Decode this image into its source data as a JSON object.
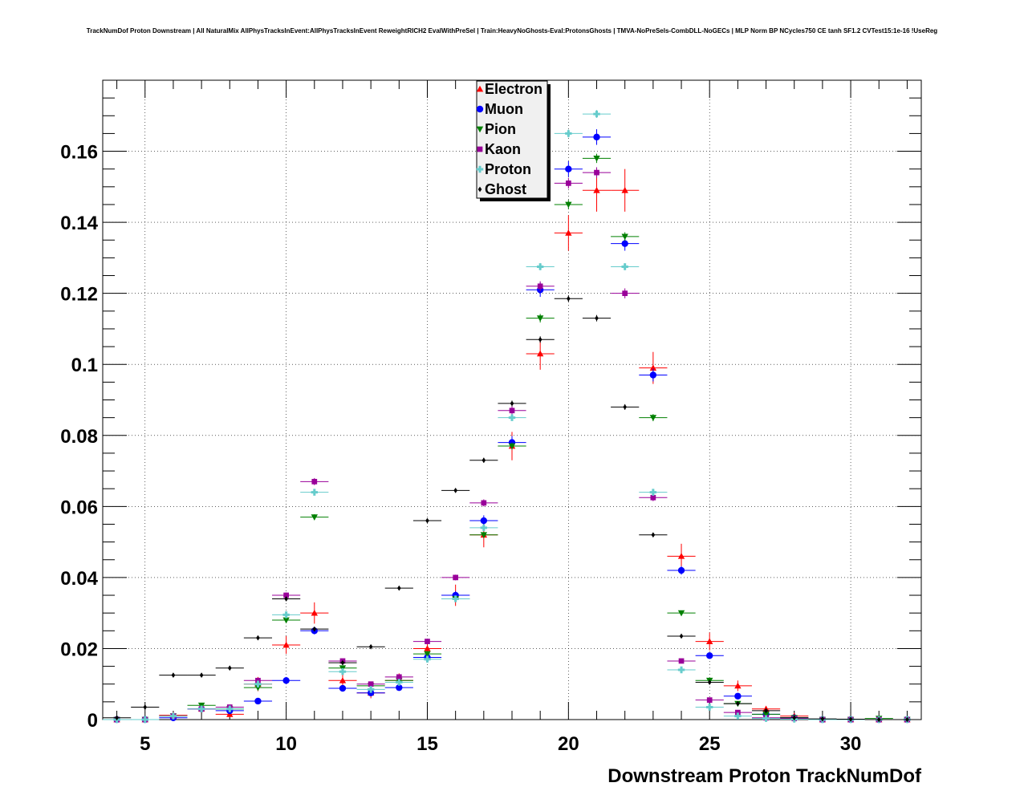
{
  "chart_data": {
    "type": "scatter",
    "title": "TrackNumDof Proton Downstream | All NaturalMix AllPhysTracksInEvent:AllPhysTracksInEvent ReweightRICH2 EvalWithPreSel | Train:HeavyNoGhosts-Eval:ProtonsGhosts | TMVA-NoPreSels-CombDLL-NoGECs | MLP Norm BP NCycles750 CE tanh SF1.2 CVTest15:1e-16 !UseReg",
    "xlabel": "Downstream Proton TrackNumDof",
    "ylabel": "",
    "xlim": [
      3.5,
      32.5
    ],
    "ylim": [
      0,
      0.18
    ],
    "grid": true,
    "legend_position": "top-center",
    "x_ticks": [
      "5",
      "10",
      "15",
      "20",
      "25",
      "30"
    ],
    "y_ticks": [
      "0",
      "0.02",
      "0.04",
      "0.06",
      "0.08",
      "0.1",
      "0.12",
      "0.14",
      "0.16"
    ],
    "x": [
      4,
      5,
      6,
      7,
      8,
      9,
      10,
      11,
      12,
      13,
      14,
      15,
      16,
      17,
      18,
      19,
      20,
      21,
      22,
      23,
      24,
      25,
      26,
      27,
      28,
      29,
      30,
      31,
      32
    ],
    "series": [
      {
        "name": "Electron",
        "color": "#ff0000",
        "marker": "triangle-up",
        "values": [
          0,
          0,
          0.0012,
          0.003,
          0.0015,
          0.01,
          0.021,
          0.03,
          0.011,
          0.0075,
          0.011,
          0.02,
          0.035,
          0.052,
          0.077,
          0.103,
          0.137,
          0.149,
          0.149,
          0.099,
          0.046,
          0.022,
          0.0095,
          0.003,
          0.001,
          0,
          0,
          0,
          0
        ],
        "errors": [
          0,
          0,
          0.0006,
          0.001,
          0.0008,
          0.002,
          0.0025,
          0.003,
          0.002,
          0.0015,
          0.002,
          0.0025,
          0.003,
          0.0035,
          0.004,
          0.0045,
          0.005,
          0.006,
          0.006,
          0.0045,
          0.0035,
          0.0025,
          0.0015,
          0.0008,
          0.0005,
          0,
          0,
          0,
          0
        ]
      },
      {
        "name": "Muon",
        "color": "#0000ff",
        "marker": "circle",
        "values": [
          0,
          0,
          0.0005,
          0.003,
          0.0025,
          0.0052,
          0.011,
          0.025,
          0.0088,
          0.0075,
          0.009,
          0.0175,
          0.035,
          0.056,
          0.078,
          0.121,
          0.155,
          0.164,
          0.134,
          0.097,
          0.042,
          0.018,
          0.0066,
          0.0015,
          0.0005,
          0,
          0,
          0,
          0
        ],
        "errors": [
          0,
          0,
          0.0002,
          0.0005,
          0.0005,
          0.0008,
          0.001,
          0.001,
          0.0008,
          0.0008,
          0.0008,
          0.001,
          0.0012,
          0.0015,
          0.0018,
          0.002,
          0.0022,
          0.0022,
          0.002,
          0.0018,
          0.0012,
          0.0008,
          0.0005,
          0.0003,
          0.0002,
          0,
          0,
          0,
          0
        ]
      },
      {
        "name": "Pion",
        "color": "#008000",
        "marker": "triangle-down",
        "values": [
          0,
          0,
          0.001,
          0.004,
          0.003,
          0.009,
          0.028,
          0.057,
          0.0145,
          0.0095,
          0.011,
          0.0185,
          0.034,
          0.052,
          0.077,
          0.113,
          0.145,
          0.158,
          0.136,
          0.085,
          0.03,
          0.011,
          0.0045,
          0.0015,
          0.0005,
          0,
          0,
          0.0003,
          0
        ],
        "errors": [
          0,
          0,
          0.0002,
          0.0003,
          0.0003,
          0.0004,
          0.0006,
          0.0008,
          0.0004,
          0.0004,
          0.0004,
          0.0005,
          0.0007,
          0.0008,
          0.001,
          0.0012,
          0.0013,
          0.0013,
          0.0012,
          0.001,
          0.0006,
          0.0004,
          0.0002,
          0.0001,
          0.0001,
          0,
          0,
          0.0001,
          0
        ]
      },
      {
        "name": "Kaon",
        "color": "#990099",
        "marker": "square",
        "values": [
          0,
          0,
          0.001,
          0.003,
          0.0035,
          0.011,
          0.035,
          0.067,
          0.0165,
          0.01,
          0.012,
          0.022,
          0.04,
          0.061,
          0.087,
          0.122,
          0.151,
          0.154,
          0.12,
          0.0625,
          0.0165,
          0.0055,
          0.002,
          0.0005,
          0.0003,
          0,
          0,
          0,
          0
        ],
        "errors": [
          0,
          0,
          0.0002,
          0.0003,
          0.0003,
          0.0005,
          0.0008,
          0.001,
          0.0005,
          0.0004,
          0.0004,
          0.0006,
          0.0008,
          0.001,
          0.0012,
          0.0014,
          0.0015,
          0.0015,
          0.0014,
          0.001,
          0.0005,
          0.0003,
          0.0002,
          0.0001,
          0.0001,
          0,
          0,
          0,
          0
        ]
      },
      {
        "name": "Proton",
        "color": "#66cccc",
        "marker": "cross",
        "values": [
          0,
          0,
          0.001,
          0.003,
          0.003,
          0.01,
          0.0295,
          0.064,
          0.0135,
          0.0085,
          0.0105,
          0.017,
          0.034,
          0.054,
          0.085,
          0.1275,
          0.165,
          0.1705,
          0.1275,
          0.064,
          0.014,
          0.0035,
          0.001,
          0.0003,
          0.0001,
          0,
          0,
          0,
          0
        ],
        "errors": [
          0,
          0,
          0.0001,
          0.0002,
          0.0002,
          0.0003,
          0.0005,
          0.0007,
          0.0003,
          0.0003,
          0.0003,
          0.0004,
          0.0005,
          0.0007,
          0.0008,
          0.001,
          0.0011,
          0.0011,
          0.001,
          0.0007,
          0.0003,
          0.0002,
          0.0001,
          0.0001,
          0.0001,
          0,
          0,
          0,
          0
        ]
      },
      {
        "name": "Ghost",
        "color": "#000000",
        "marker": "diamond",
        "values": [
          0.0005,
          0.0035,
          0.0125,
          0.0125,
          0.0145,
          0.023,
          0.034,
          0.0255,
          0.016,
          0.0205,
          0.037,
          0.056,
          0.0645,
          0.073,
          0.089,
          0.107,
          0.1185,
          0.113,
          0.088,
          0.052,
          0.0235,
          0.0105,
          0.0045,
          0.0025,
          0.0005,
          0.0002,
          0.0001,
          0,
          0
        ],
        "errors": [
          0.0001,
          0.0002,
          0.0003,
          0.0003,
          0.0003,
          0.0004,
          0.0005,
          0.0004,
          0.0003,
          0.0004,
          0.0005,
          0.0006,
          0.0006,
          0.0007,
          0.0008,
          0.0009,
          0.0009,
          0.0009,
          0.0008,
          0.0006,
          0.0004,
          0.0003,
          0.0002,
          0.0001,
          0.0001,
          0.0001,
          0.0001,
          0,
          0
        ]
      }
    ]
  }
}
